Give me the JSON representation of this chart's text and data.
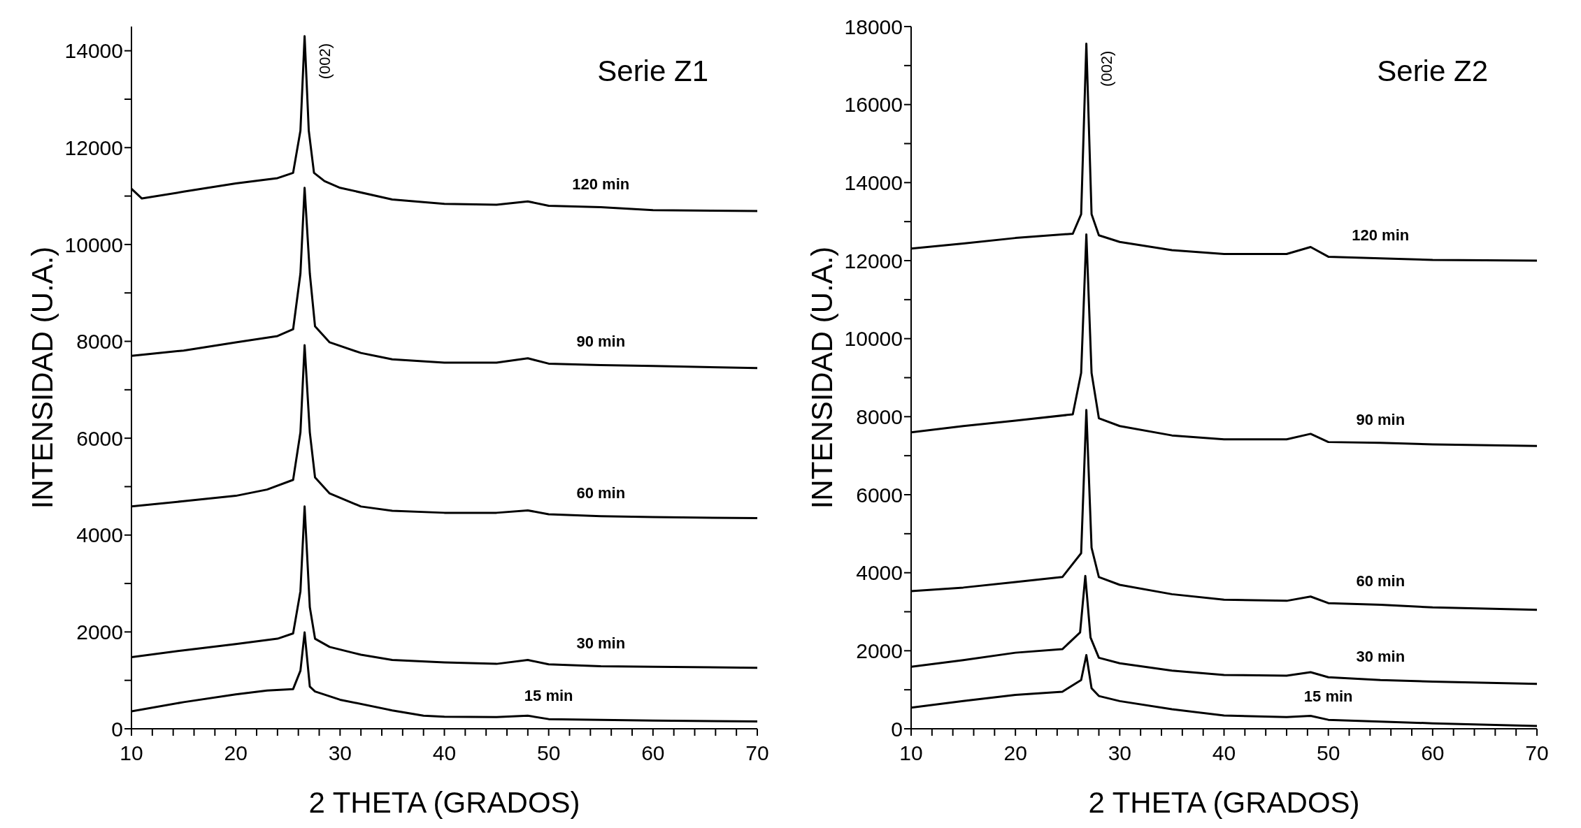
{
  "chart_data": [
    {
      "type": "line",
      "xlabel": "2 THETA (GRADOS)",
      "ylabel": "INTENSIDAD (U.A.)",
      "xlim": [
        10,
        70
      ],
      "ylim": [
        0,
        14500
      ],
      "xticks": [
        10,
        {
          "value": 12,
          "label": null
        },
        {
          "value": 14,
          "label": null
        },
        {
          "value": 16,
          "label": null
        },
        {
          "value": 18,
          "label": null
        },
        20,
        {
          "value": 22,
          "label": null
        },
        {
          "value": 24,
          "label": null
        },
        {
          "value": 26,
          "label": null
        },
        {
          "value": 28,
          "label": null
        },
        30,
        {
          "value": 32,
          "label": null
        },
        {
          "value": 34,
          "label": null
        },
        {
          "value": 36,
          "label": null
        },
        {
          "value": 38,
          "label": null
        },
        40,
        {
          "value": 42,
          "label": null
        },
        {
          "value": 44,
          "label": null
        },
        {
          "value": 46,
          "label": null
        },
        {
          "value": 48,
          "label": null
        },
        50,
        {
          "value": 52,
          "label": null
        },
        {
          "value": 54,
          "label": null
        },
        {
          "value": 56,
          "label": null
        },
        {
          "value": 58,
          "label": null
        },
        60,
        {
          "value": 62,
          "label": null
        },
        {
          "value": 64,
          "label": null
        },
        {
          "value": 66,
          "label": null
        },
        {
          "value": 68,
          "label": null
        },
        70
      ],
      "yticks": [
        0,
        {
          "value": 1000,
          "label": null
        },
        2000,
        {
          "value": 3000,
          "label": null
        },
        4000,
        {
          "value": 5000,
          "label": null
        },
        6000,
        {
          "value": 7000,
          "label": null
        },
        8000,
        {
          "value": 9000,
          "label": null
        },
        10000,
        {
          "value": 11000,
          "label": null
        },
        12000,
        {
          "value": 13000,
          "label": null
        },
        14000
      ],
      "annotations": [
        "Serie Z1",
        {
          "text": "(002)",
          "x": 26.6,
          "y": 14300
        }
      ],
      "series": [
        {
          "name": "120 min",
          "color": "#000000",
          "x": [
            10,
            11,
            15,
            20,
            24,
            25.5,
            26.2,
            26.6,
            27,
            27.5,
            28.5,
            30,
            35,
            40,
            45,
            48,
            50,
            55,
            60,
            70
          ],
          "values": [
            11150,
            10950,
            11090,
            11260,
            11370,
            11480,
            12350,
            14300,
            12350,
            11480,
            11310,
            11170,
            10930,
            10840,
            10820,
            10890,
            10800,
            10770,
            10710,
            10690
          ]
        },
        {
          "name": "90 min",
          "color": "#000000",
          "x": [
            10,
            15,
            20,
            24,
            25.5,
            26.2,
            26.6,
            27.1,
            27.6,
            29,
            32,
            35,
            40,
            45,
            48,
            50,
            55,
            60,
            70
          ],
          "values": [
            7700,
            7810,
            7980,
            8110,
            8250,
            9400,
            11170,
            9400,
            8310,
            7980,
            7760,
            7630,
            7560,
            7560,
            7650,
            7540,
            7510,
            7490,
            7450
          ]
        },
        {
          "name": "60 min",
          "color": "#000000",
          "x": [
            10,
            15,
            20,
            23,
            25.5,
            26.2,
            26.6,
            27.1,
            27.6,
            29,
            32,
            35,
            40,
            45,
            48,
            50,
            55,
            60,
            70
          ],
          "values": [
            4590,
            4700,
            4810,
            4940,
            5140,
            6120,
            7920,
            6120,
            5190,
            4860,
            4590,
            4500,
            4460,
            4460,
            4510,
            4430,
            4390,
            4370,
            4350
          ]
        },
        {
          "name": "30 min",
          "color": "#000000",
          "x": [
            10,
            15,
            20,
            24,
            25.5,
            26.2,
            26.6,
            27.1,
            27.6,
            29,
            32,
            35,
            40,
            45,
            48,
            50,
            55,
            60,
            70
          ],
          "values": [
            1480,
            1620,
            1750,
            1860,
            1970,
            2840,
            4590,
            2510,
            1860,
            1690,
            1530,
            1420,
            1370,
            1340,
            1420,
            1330,
            1290,
            1280,
            1260
          ]
        },
        {
          "name": "15 min",
          "color": "#000000",
          "x": [
            10,
            15,
            20,
            23,
            25.5,
            26.2,
            26.6,
            27.1,
            27.6,
            30,
            35,
            38,
            40,
            45,
            48,
            50,
            60,
            70
          ],
          "values": [
            360,
            550,
            710,
            790,
            820,
            1200,
            1990,
            870,
            770,
            600,
            380,
            270,
            250,
            240,
            270,
            200,
            170,
            150
          ]
        }
      ]
    },
    {
      "type": "line",
      "xlabel": "2 THETA (GRADOS)",
      "ylabel": "INTENSIDAD (U.A.)",
      "xlim": [
        10,
        70
      ],
      "ylim": [
        0,
        18000
      ],
      "xticks": [
        10,
        {
          "value": 12,
          "label": null
        },
        {
          "value": 14,
          "label": null
        },
        {
          "value": 16,
          "label": null
        },
        {
          "value": 18,
          "label": null
        },
        20,
        {
          "value": 22,
          "label": null
        },
        {
          "value": 24,
          "label": null
        },
        {
          "value": 26,
          "label": null
        },
        {
          "value": 28,
          "label": null
        },
        30,
        {
          "value": 32,
          "label": null
        },
        {
          "value": 34,
          "label": null
        },
        {
          "value": 36,
          "label": null
        },
        {
          "value": 38,
          "label": null
        },
        40,
        {
          "value": 42,
          "label": null
        },
        {
          "value": 44,
          "label": null
        },
        {
          "value": 46,
          "label": null
        },
        {
          "value": 48,
          "label": null
        },
        50,
        {
          "value": 52,
          "label": null
        },
        {
          "value": 54,
          "label": null
        },
        {
          "value": 56,
          "label": null
        },
        {
          "value": 58,
          "label": null
        },
        60,
        {
          "value": 62,
          "label": null
        },
        {
          "value": 64,
          "label": null
        },
        {
          "value": 66,
          "label": null
        },
        {
          "value": 68,
          "label": null
        },
        70
      ],
      "yticks": [
        0,
        {
          "value": 1000,
          "label": null
        },
        2000,
        {
          "value": 3000,
          "label": null
        },
        4000,
        {
          "value": 5000,
          "label": null
        },
        6000,
        {
          "value": 7000,
          "label": null
        },
        8000,
        {
          "value": 9000,
          "label": null
        },
        10000,
        {
          "value": 11000,
          "label": null
        },
        12000,
        {
          "value": 13000,
          "label": null
        },
        14000,
        {
          "value": 15000,
          "label": null
        },
        16000,
        {
          "value": 17000,
          "label": null
        },
        18000
      ],
      "annotations": [
        "Serie Z2",
        {
          "text": "(002)",
          "x": 26.8,
          "y": 17560
        }
      ],
      "series": [
        {
          "name": "120 min",
          "color": "#000000",
          "x": [
            10,
            15,
            20,
            25.5,
            26.3,
            26.8,
            27.3,
            28,
            30,
            35,
            40,
            46,
            48.3,
            50,
            55,
            60,
            70
          ],
          "values": [
            12310,
            12440,
            12580,
            12690,
            13190,
            17560,
            13190,
            12650,
            12480,
            12270,
            12170,
            12170,
            12350,
            12100,
            12060,
            12020,
            12000
          ]
        },
        {
          "name": "90 min",
          "color": "#000000",
          "x": [
            10,
            15,
            20,
            25.5,
            26.3,
            26.8,
            27.3,
            28,
            30,
            35,
            40,
            46,
            48.3,
            50,
            55,
            60,
            70
          ],
          "values": [
            7600,
            7760,
            7900,
            8060,
            9120,
            12670,
            9120,
            7960,
            7760,
            7520,
            7420,
            7420,
            7560,
            7350,
            7330,
            7290,
            7250
          ]
        },
        {
          "name": "60 min",
          "color": "#000000",
          "x": [
            10,
            15,
            20,
            24.5,
            26.3,
            26.8,
            27.3,
            28,
            30,
            35,
            40,
            46,
            48.3,
            50,
            55,
            60,
            70
          ],
          "values": [
            3530,
            3620,
            3760,
            3890,
            4500,
            8170,
            4640,
            3890,
            3690,
            3450,
            3310,
            3280,
            3390,
            3220,
            3180,
            3110,
            3050
          ]
        },
        {
          "name": "30 min",
          "color": "#000000",
          "x": [
            10,
            15,
            20,
            24.5,
            26.2,
            26.7,
            27.2,
            28,
            30,
            35,
            40,
            46,
            48.3,
            50,
            55,
            60,
            70
          ],
          "values": [
            1590,
            1760,
            1950,
            2040,
            2470,
            3920,
            2340,
            1820,
            1680,
            1490,
            1380,
            1360,
            1450,
            1320,
            1250,
            1210,
            1150
          ]
        },
        {
          "name": "15 min",
          "color": "#000000",
          "x": [
            10,
            15,
            20,
            24.5,
            26.3,
            26.8,
            27.3,
            28,
            30,
            35,
            40,
            46,
            48.3,
            50,
            60,
            70
          ],
          "values": [
            540,
            710,
            870,
            950,
            1250,
            1890,
            1040,
            840,
            710,
            500,
            340,
            300,
            330,
            230,
            140,
            70
          ]
        }
      ]
    }
  ]
}
